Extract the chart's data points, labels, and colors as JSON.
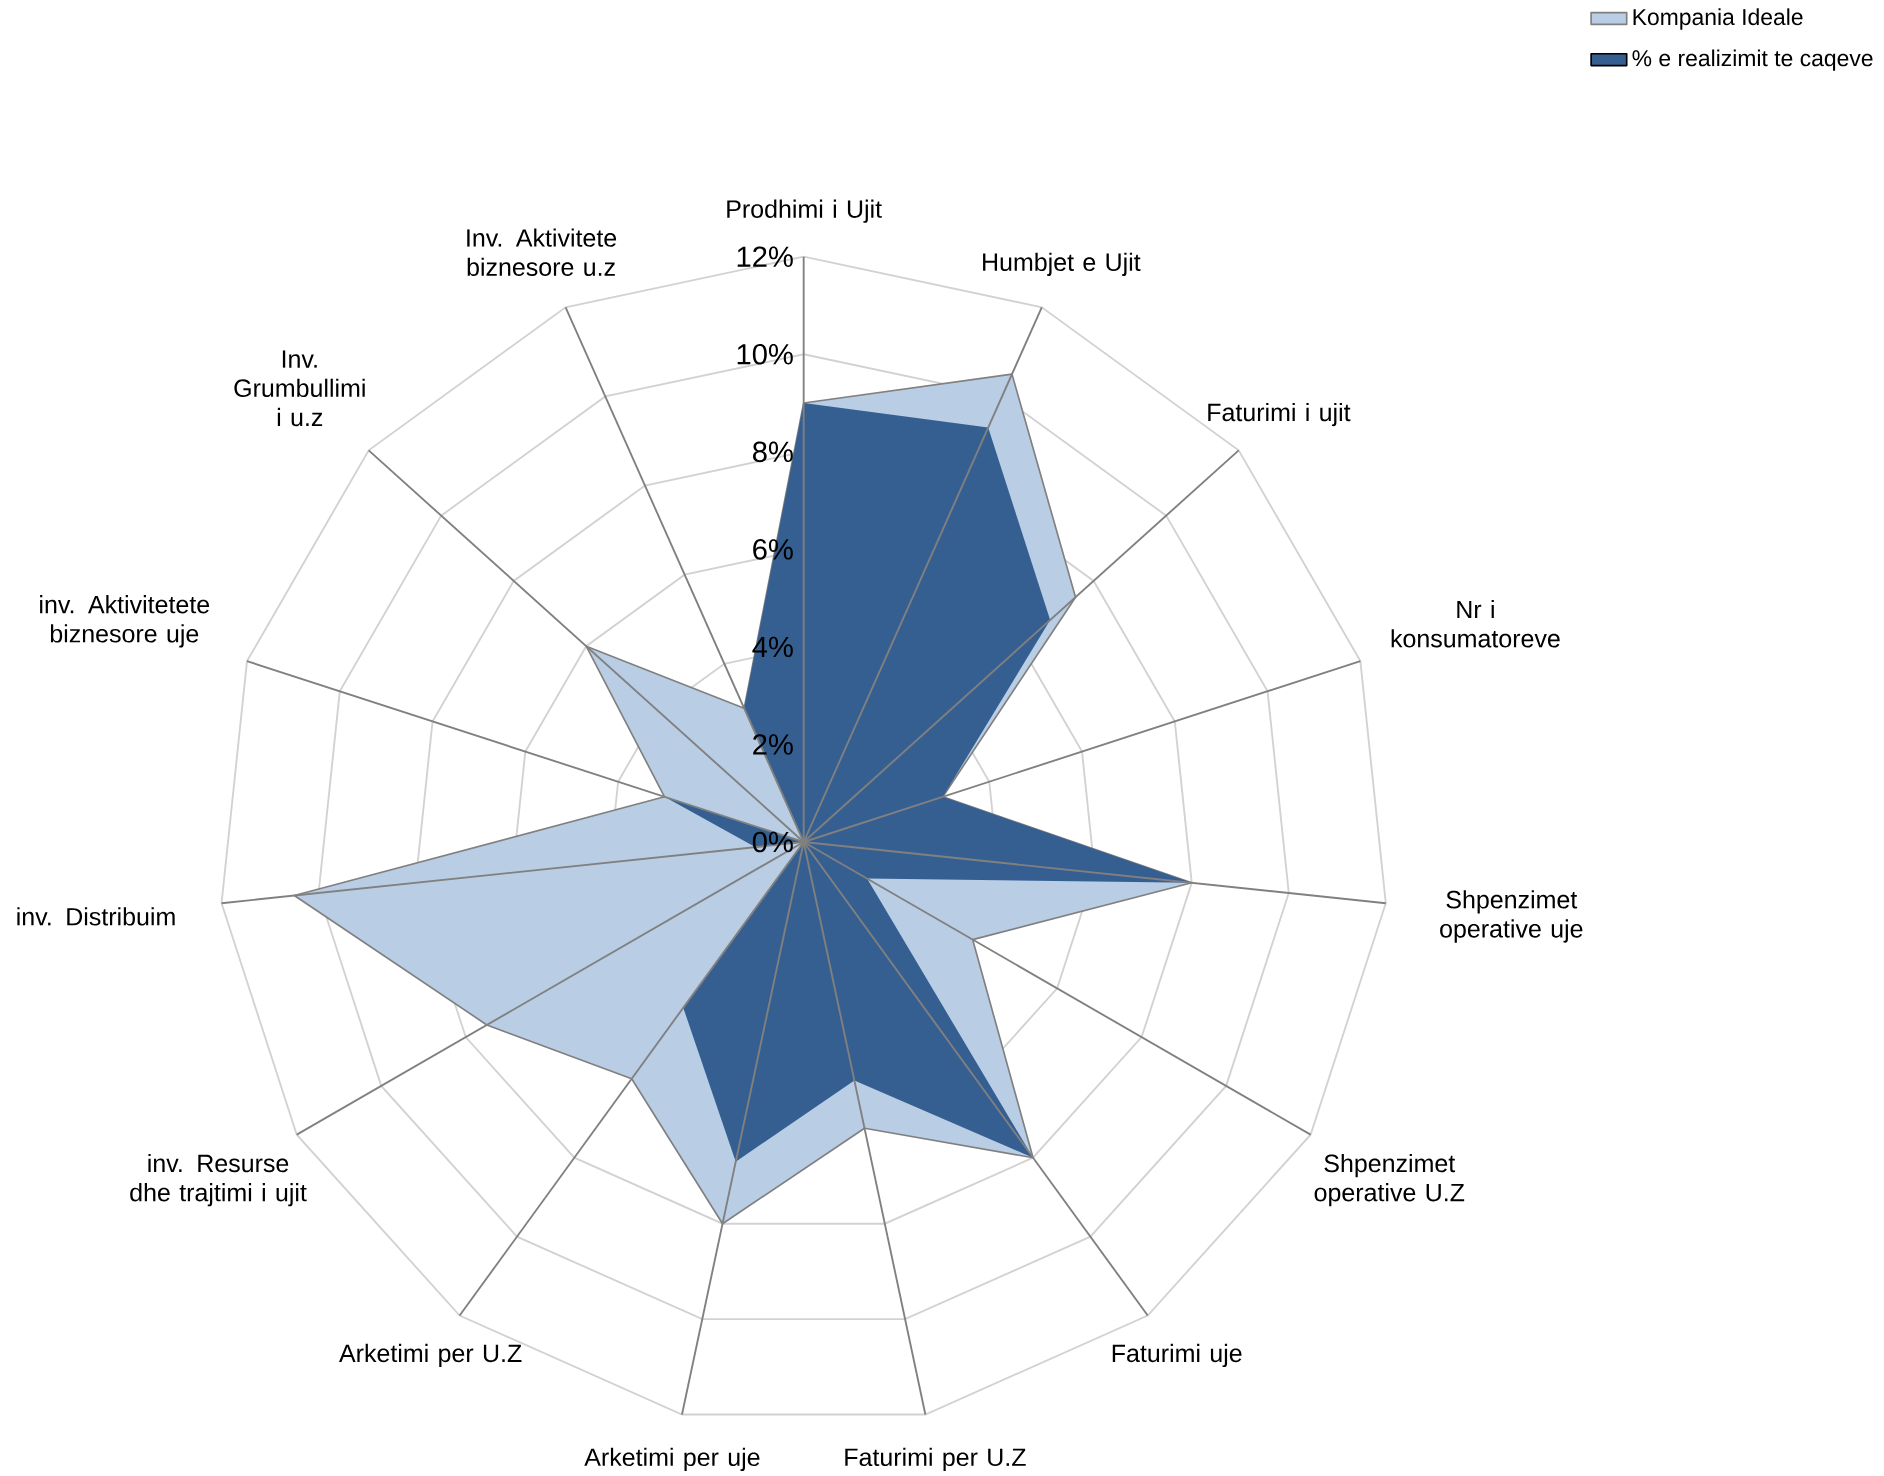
{
  "chart_data": {
    "type": "radar",
    "categories": [
      "Prodhimi i Ujit",
      "Humbjet e Ujit",
      "Faturimi i ujit",
      "Nr i konsumatoreve",
      "Shpenzimet operative  uje",
      "Shpenzimet operative U.Z",
      "Faturimi uje",
      "Faturimi per U.Z",
      "Arketimi per uje",
      "Arketimi per U.Z",
      "inv. Resurse dhe trajtimi i ujit",
      "inv. Distribuim",
      "inv. Aktivitetete biznesore  uje",
      "Inv. Grumbullimi i u.z",
      "Inv. Aktivitete biznesore  u.z"
    ],
    "series": [
      {
        "name": "Kompania Ideale",
        "color": "#b9cde5",
        "values": [
          9,
          10.5,
          7.5,
          3,
          8,
          4,
          8,
          6,
          8,
          6,
          7.5,
          10.5,
          3,
          6,
          3
        ]
      },
      {
        "name": "% e realizimit te caqeve",
        "color": "#365f91",
        "values": [
          9,
          9.3,
          6.8,
          3,
          8,
          1.5,
          8,
          5,
          6.7,
          4.2,
          0,
          1,
          3,
          0,
          3
        ]
      }
    ],
    "ylim": [
      0,
      12
    ],
    "yticks": [
      {
        "value": 0,
        "label": "0%"
      },
      {
        "value": 2,
        "label": "2%"
      },
      {
        "value": 4,
        "label": "4%"
      },
      {
        "value": 6,
        "label": "6%"
      },
      {
        "value": 8,
        "label": "8%"
      },
      {
        "value": 10,
        "label": "10%"
      },
      {
        "value": 12,
        "label": "12%"
      }
    ],
    "grid": true,
    "legend": "top right"
  }
}
